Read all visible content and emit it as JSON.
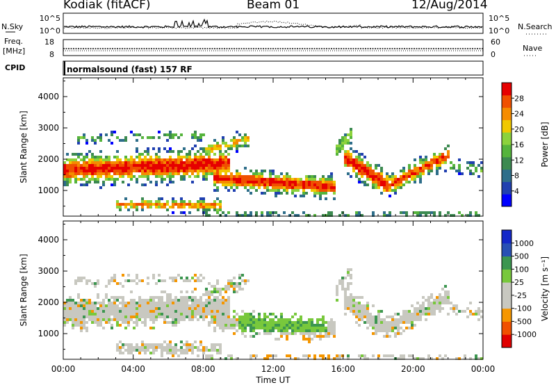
{
  "header": {
    "station": "Kodiak (fitACF)",
    "beam": "Beam 01",
    "date": "12/Aug/2014"
  },
  "top_panels": {
    "nsky_label": "N.Sky",
    "nsearch_label": "N.Search",
    "noise_ticks_left": [
      "10^5",
      "10^0"
    ],
    "noise_ticks_right": [
      "10^5",
      "10^0"
    ],
    "freq_label_1": "Freq.",
    "freq_label_2": "[MHz]",
    "freq_ticks": [
      "18",
      "8"
    ],
    "nave_label": "Nave",
    "nave_ticks": [
      "60",
      "0"
    ],
    "cpid_label": "CPID",
    "cpid_value": "normalsound (fast) 157 RF"
  },
  "chart_data": [
    {
      "type": "heatmap",
      "name": "power",
      "ylabel": "Slant Range [km]",
      "xlabel": "",
      "xlim": [
        "00:00",
        "24:00"
      ],
      "ylim": [
        180,
        4600
      ],
      "yticks": [
        "4000",
        "3000",
        "2000",
        "1000"
      ],
      "colorbar": {
        "label": "Power [dB]",
        "ticks": [
          "28",
          "24",
          "20",
          "16",
          "12",
          "8",
          "4"
        ],
        "colors": [
          "#0000ff",
          "#2040b0",
          "#2e6e8a",
          "#3c8a50",
          "#55b43c",
          "#8cd23c",
          "#f0c800",
          "#f58c00",
          "#f05000",
          "#e60000"
        ]
      }
    },
    {
      "type": "heatmap",
      "name": "velocity",
      "ylabel": "Slant Range [km]",
      "xlabel": "Time UT",
      "xlim": [
        "00:00",
        "24:00"
      ],
      "ylim": [
        180,
        4600
      ],
      "yticks": [
        "4000",
        "3000",
        "2000",
        "1000"
      ],
      "xticks": [
        "00:00",
        "04:00",
        "08:00",
        "12:00",
        "16:00",
        "20:00",
        "00:00"
      ],
      "colorbar": {
        "label": "Velocity [m s⁻¹]",
        "ticks": [
          "1000",
          "500",
          "100",
          "25",
          "-25",
          "-100",
          "-500",
          "-1000"
        ],
        "colors": [
          "#e00000",
          "#f05000",
          "#f59600",
          "#c8c8c0",
          "#c8c8c0",
          "#78c83c",
          "#3c9650",
          "#2850b4",
          "#1428c8"
        ]
      }
    }
  ]
}
